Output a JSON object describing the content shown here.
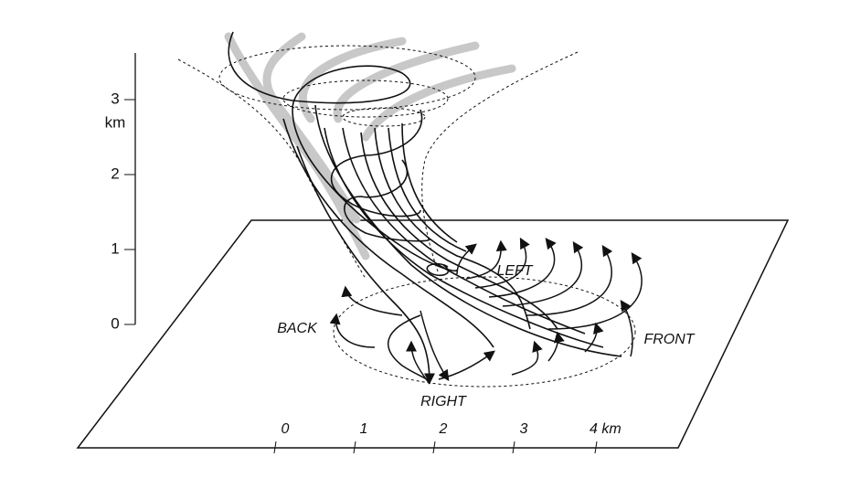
{
  "vertical_scale": {
    "ticks": [
      "0",
      "1",
      "2",
      "3"
    ],
    "unit": "km"
  },
  "labels": {
    "back": "BACK",
    "left": "LEFT",
    "front": "FRONT",
    "right": "RIGHT"
  },
  "horizontal_scale": {
    "ticks": [
      "0",
      "1",
      "2",
      "3",
      "4 km"
    ]
  }
}
